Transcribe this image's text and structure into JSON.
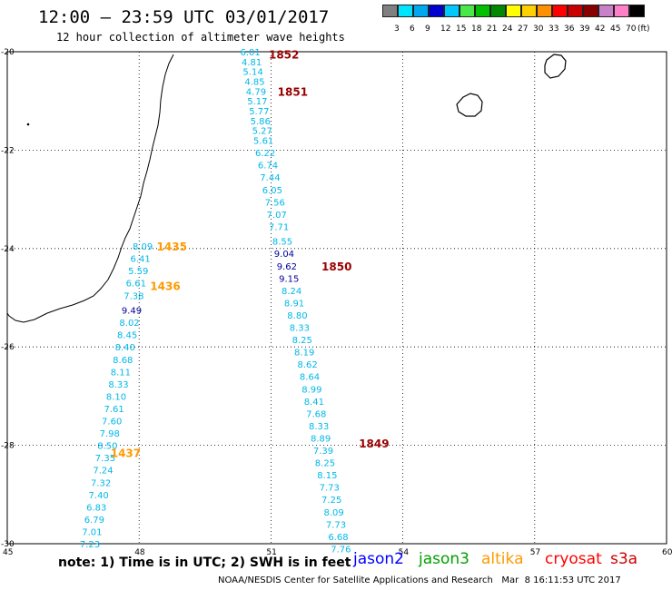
{
  "header": {
    "title": "12:00 – 23:59 UTC 03/01/2017",
    "subtitle": "12 hour collection of altimeter wave heights"
  },
  "colorbar": {
    "labels": [
      "3",
      "6",
      "9",
      "12",
      "15",
      "18",
      "21",
      "24",
      "27",
      "30",
      "33",
      "36",
      "39",
      "42",
      "45",
      "70"
    ],
    "unit": "(ft)",
    "colors": [
      "#808080",
      "#00e5ff",
      "#00a8f0",
      "#0000d0",
      "#00c8ff",
      "#48e848",
      "#00c000",
      "#008800",
      "#ffff00",
      "#ffd000",
      "#ff9000",
      "#ff0000",
      "#c80000",
      "#880000",
      "#c880c8",
      "#ff80c8",
      "#000000"
    ]
  },
  "map": {
    "lat_ticks": [
      "-20",
      "-22",
      "-24",
      "-26",
      "-28",
      "-30"
    ],
    "lon_ticks": [
      "45",
      "48",
      "51",
      "54",
      "57",
      "60"
    ],
    "lon_range": [
      45,
      60
    ],
    "lat_range": [
      -30,
      -20
    ],
    "colors": {
      "jason2": "#0000ff",
      "jason3": "#00a000",
      "altika": "#ff9900",
      "cryosat": "#ff0000",
      "s3a": "#cc0000",
      "swh_light": "#00b8e8",
      "swh_dark": "#000099",
      "orbit_label": "#990000"
    }
  },
  "orbit_labels": [
    {
      "text": "1852",
      "lon": 50.95,
      "lat": -20.05,
      "color": "dark"
    },
    {
      "text": "1851",
      "lon": 51.15,
      "lat": -20.8,
      "color": "dark"
    },
    {
      "text": "1435",
      "lon": 48.4,
      "lat": -23.95,
      "color": "orange"
    },
    {
      "text": "1850",
      "lon": 52.15,
      "lat": -24.35,
      "color": "dark"
    },
    {
      "text": "1436",
      "lon": 48.25,
      "lat": -24.75,
      "color": "orange"
    },
    {
      "text": "1849",
      "lon": 53.0,
      "lat": -27.95,
      "color": "dark"
    },
    {
      "text": "1437",
      "lon": 47.35,
      "lat": -28.15,
      "color": "orange"
    }
  ],
  "track_east": [
    {
      "v": "6.01",
      "lon": 50.3,
      "lat": -20.0
    },
    {
      "v": "4.81",
      "lon": 50.33,
      "lat": -20.2
    },
    {
      "v": "5.14",
      "lon": 50.36,
      "lat": -20.4
    },
    {
      "v": "4.85",
      "lon": 50.4,
      "lat": -20.6
    },
    {
      "v": "4.79",
      "lon": 50.43,
      "lat": -20.8
    },
    {
      "v": "5.17",
      "lon": 50.46,
      "lat": -21.0
    },
    {
      "v": "5.77",
      "lon": 50.5,
      "lat": -21.2
    },
    {
      "v": "5.86",
      "lon": 50.53,
      "lat": -21.4
    },
    {
      "v": "5.27",
      "lon": 50.57,
      "lat": -21.6
    },
    {
      "v": "5.61",
      "lon": 50.6,
      "lat": -21.8
    },
    {
      "v": "6.22",
      "lon": 50.64,
      "lat": -22.05
    },
    {
      "v": "6.74",
      "lon": 50.7,
      "lat": -22.3
    },
    {
      "v": "7.44",
      "lon": 50.75,
      "lat": -22.55
    },
    {
      "v": "6.05",
      "lon": 50.8,
      "lat": -22.8
    },
    {
      "v": "7.56",
      "lon": 50.86,
      "lat": -23.05
    },
    {
      "v": "7.07",
      "lon": 50.9,
      "lat": -23.3
    },
    {
      "v": "7.71",
      "lon": 50.95,
      "lat": -23.55
    },
    {
      "v": "8.55",
      "lon": 51.03,
      "lat": -23.85
    },
    {
      "v": "9.04",
      "lon": 51.07,
      "lat": -24.1,
      "dark": true
    },
    {
      "v": "9.62",
      "lon": 51.13,
      "lat": -24.35,
      "dark": true
    },
    {
      "v": "9.15",
      "lon": 51.18,
      "lat": -24.6,
      "dark": true
    },
    {
      "v": "8.24",
      "lon": 51.24,
      "lat": -24.85
    },
    {
      "v": "8.91",
      "lon": 51.3,
      "lat": -25.1
    },
    {
      "v": "8.80",
      "lon": 51.37,
      "lat": -25.35
    },
    {
      "v": "8.33",
      "lon": 51.42,
      "lat": -25.6
    },
    {
      "v": "8.25",
      "lon": 51.48,
      "lat": -25.85
    },
    {
      "v": "8.19",
      "lon": 51.53,
      "lat": -26.1
    },
    {
      "v": "8.62",
      "lon": 51.6,
      "lat": -26.35
    },
    {
      "v": "8.64",
      "lon": 51.65,
      "lat": -26.6
    },
    {
      "v": "8.99",
      "lon": 51.7,
      "lat": -26.85
    },
    {
      "v": "8.41",
      "lon": 51.75,
      "lat": -27.1
    },
    {
      "v": "7.68",
      "lon": 51.8,
      "lat": -27.35
    },
    {
      "v": "8.33",
      "lon": 51.86,
      "lat": -27.6
    },
    {
      "v": "8.89",
      "lon": 51.9,
      "lat": -27.85
    },
    {
      "v": "7.39",
      "lon": 51.96,
      "lat": -28.1
    },
    {
      "v": "8.25",
      "lon": 52.0,
      "lat": -28.35
    },
    {
      "v": "8.15",
      "lon": 52.05,
      "lat": -28.6
    },
    {
      "v": "7.73",
      "lon": 52.1,
      "lat": -28.85
    },
    {
      "v": "7.25",
      "lon": 52.15,
      "lat": -29.1
    },
    {
      "v": "8.09",
      "lon": 52.2,
      "lat": -29.35
    },
    {
      "v": "7.73",
      "lon": 52.25,
      "lat": -29.6
    },
    {
      "v": "6.68",
      "lon": 52.3,
      "lat": -29.85
    },
    {
      "v": "7.76",
      "lon": 52.36,
      "lat": -30.1
    }
  ],
  "track_west": [
    {
      "v": "8.09",
      "lon": 47.85,
      "lat": -23.95
    },
    {
      "v": "6.41",
      "lon": 47.8,
      "lat": -24.2
    },
    {
      "v": "5.59",
      "lon": 47.75,
      "lat": -24.45
    },
    {
      "v": "6.61",
      "lon": 47.7,
      "lat": -24.7
    },
    {
      "v": "7.38",
      "lon": 47.65,
      "lat": -24.95
    },
    {
      "v": "9.49",
      "lon": 47.6,
      "lat": -25.25,
      "dark": true
    },
    {
      "v": "8.02",
      "lon": 47.55,
      "lat": -25.5
    },
    {
      "v": "8.45",
      "lon": 47.5,
      "lat": -25.75
    },
    {
      "v": "8.40",
      "lon": 47.45,
      "lat": -26.0
    },
    {
      "v": "8.68",
      "lon": 47.4,
      "lat": -26.25
    },
    {
      "v": "8.11",
      "lon": 47.35,
      "lat": -26.5
    },
    {
      "v": "8.33",
      "lon": 47.3,
      "lat": -26.75
    },
    {
      "v": "8.10",
      "lon": 47.25,
      "lat": -27.0
    },
    {
      "v": "7.61",
      "lon": 47.2,
      "lat": -27.25
    },
    {
      "v": "7.60",
      "lon": 47.15,
      "lat": -27.5
    },
    {
      "v": "7.98",
      "lon": 47.1,
      "lat": -27.75
    },
    {
      "v": "8.50",
      "lon": 47.05,
      "lat": -28.0
    },
    {
      "v": "7.35",
      "lon": 47.0,
      "lat": -28.25
    },
    {
      "v": "7.24",
      "lon": 46.95,
      "lat": -28.5
    },
    {
      "v": "7.32",
      "lon": 46.9,
      "lat": -28.75
    },
    {
      "v": "7.40",
      "lon": 46.85,
      "lat": -29.0
    },
    {
      "v": "6.83",
      "lon": 46.8,
      "lat": -29.25
    },
    {
      "v": "6.79",
      "lon": 46.75,
      "lat": -29.5
    },
    {
      "v": "7.01",
      "lon": 46.7,
      "lat": -29.75
    },
    {
      "v": "7.23",
      "lon": 46.65,
      "lat": -30.0
    }
  ],
  "footer": {
    "note": "note: 1) Time is in UTC; 2) SWH is in feet",
    "credit": "NOAA/NESDIS Center for Satellite Applications and Research   Mar  8 16:11:53 UTC 2017",
    "satellites": [
      "jason2",
      "jason3",
      "altika",
      "cryosat",
      "s3a"
    ]
  }
}
